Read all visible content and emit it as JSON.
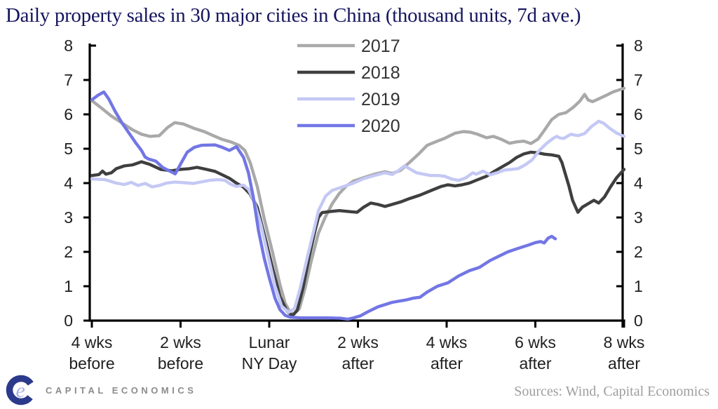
{
  "title": "Daily property sales in 30 major cities in China (thousand units, 7d ave.)",
  "footer": {
    "logo_text": "CAPITAL ECONOMICS",
    "sources": "Sources: Wind, Capital Economics"
  },
  "colors": {
    "title_text": "#15155f",
    "axis": "#000000",
    "tick_label": "#1f1f1f",
    "legend_label": "#333333",
    "logo_c": "#2c3a8c",
    "logo_e": "#a9b0e4",
    "logo_text": "#8c8c8c",
    "sources_text": "#9e9e9e"
  },
  "chart_data": {
    "type": "line",
    "title": "Daily property sales in 30 major cities in China (thousand units, 7d ave.)",
    "grid": false,
    "legend_position": "top-center",
    "x_axis": {
      "unit": "weeks relative to Lunar New Year Day",
      "range": [
        -4,
        8
      ],
      "ticks": [
        -4,
        -2,
        0,
        2,
        4,
        6,
        8
      ],
      "tick_labels": [
        [
          "4 wks",
          "before"
        ],
        [
          "2 wks",
          "before"
        ],
        [
          "Lunar",
          "NY Day"
        ],
        [
          "2 wks",
          "after"
        ],
        [
          "4 wks",
          "after"
        ],
        [
          "6 wks",
          "after"
        ],
        [
          "8 wks",
          "after"
        ]
      ]
    },
    "y_axis": {
      "range": [
        0,
        8
      ],
      "ticks": [
        0,
        1,
        2,
        3,
        4,
        5,
        6,
        7,
        8
      ],
      "sides": "both"
    },
    "series": [
      {
        "name": "2017",
        "color": "#a9a9a9",
        "points": [
          [
            -4,
            6.4
          ],
          [
            -3.8,
            6.2
          ],
          [
            -3.56,
            5.95
          ],
          [
            -3.32,
            5.75
          ],
          [
            -3.08,
            5.55
          ],
          [
            -2.88,
            5.42
          ],
          [
            -2.69,
            5.36
          ],
          [
            -2.48,
            5.38
          ],
          [
            -2.29,
            5.62
          ],
          [
            -2.13,
            5.76
          ],
          [
            -1.94,
            5.72
          ],
          [
            -1.71,
            5.6
          ],
          [
            -1.47,
            5.5
          ],
          [
            -1.26,
            5.38
          ],
          [
            -1.06,
            5.27
          ],
          [
            -0.87,
            5.2
          ],
          [
            -0.68,
            5.1
          ],
          [
            -0.55,
            4.95
          ],
          [
            -0.43,
            4.6
          ],
          [
            -0.27,
            3.9
          ],
          [
            -0.11,
            2.95
          ],
          [
            0.08,
            1.95
          ],
          [
            0.24,
            1.05
          ],
          [
            0.36,
            0.5
          ],
          [
            0.47,
            0.25
          ],
          [
            0.55,
            0.18
          ],
          [
            0.68,
            0.35
          ],
          [
            0.81,
            0.95
          ],
          [
            0.95,
            1.75
          ],
          [
            1.11,
            2.55
          ],
          [
            1.26,
            3.0
          ],
          [
            1.42,
            3.4
          ],
          [
            1.58,
            3.7
          ],
          [
            1.74,
            3.92
          ],
          [
            1.9,
            4.06
          ],
          [
            2.13,
            4.16
          ],
          [
            2.37,
            4.26
          ],
          [
            2.61,
            4.33
          ],
          [
            2.77,
            4.28
          ],
          [
            2.96,
            4.37
          ],
          [
            3.16,
            4.6
          ],
          [
            3.37,
            4.85
          ],
          [
            3.56,
            5.1
          ],
          [
            3.75,
            5.2
          ],
          [
            3.95,
            5.3
          ],
          [
            4.19,
            5.45
          ],
          [
            4.38,
            5.5
          ],
          [
            4.54,
            5.48
          ],
          [
            4.7,
            5.42
          ],
          [
            4.9,
            5.32
          ],
          [
            5.06,
            5.36
          ],
          [
            5.22,
            5.28
          ],
          [
            5.42,
            5.16
          ],
          [
            5.58,
            5.2
          ],
          [
            5.74,
            5.22
          ],
          [
            5.9,
            5.15
          ],
          [
            6.06,
            5.28
          ],
          [
            6.21,
            5.55
          ],
          [
            6.37,
            5.85
          ],
          [
            6.53,
            6.0
          ],
          [
            6.69,
            6.05
          ],
          [
            6.85,
            6.2
          ],
          [
            7.0,
            6.38
          ],
          [
            7.11,
            6.58
          ],
          [
            7.19,
            6.42
          ],
          [
            7.29,
            6.37
          ],
          [
            7.43,
            6.45
          ],
          [
            7.59,
            6.55
          ],
          [
            7.75,
            6.65
          ],
          [
            8,
            6.76
          ]
        ]
      },
      {
        "name": "2018",
        "color": "#3f3f3f",
        "points": [
          [
            -4,
            4.22
          ],
          [
            -3.84,
            4.25
          ],
          [
            -3.76,
            4.35
          ],
          [
            -3.68,
            4.26
          ],
          [
            -3.56,
            4.3
          ],
          [
            -3.45,
            4.42
          ],
          [
            -3.27,
            4.5
          ],
          [
            -3.08,
            4.53
          ],
          [
            -2.88,
            4.62
          ],
          [
            -2.7,
            4.55
          ],
          [
            -2.45,
            4.4
          ],
          [
            -2.2,
            4.36
          ],
          [
            -2.0,
            4.4
          ],
          [
            -1.8,
            4.42
          ],
          [
            -1.63,
            4.46
          ],
          [
            -1.42,
            4.4
          ],
          [
            -1.22,
            4.34
          ],
          [
            -1.06,
            4.24
          ],
          [
            -0.9,
            4.14
          ],
          [
            -0.74,
            4.0
          ],
          [
            -0.58,
            3.88
          ],
          [
            -0.43,
            3.68
          ],
          [
            -0.27,
            3.3
          ],
          [
            -0.11,
            2.5
          ],
          [
            0.08,
            1.5
          ],
          [
            0.24,
            0.7
          ],
          [
            0.4,
            0.28
          ],
          [
            0.52,
            0.14
          ],
          [
            0.63,
            0.3
          ],
          [
            0.76,
            0.95
          ],
          [
            0.9,
            1.86
          ],
          [
            1.03,
            2.6
          ],
          [
            1.11,
            3.0
          ],
          [
            1.19,
            3.14
          ],
          [
            1.35,
            3.17
          ],
          [
            1.58,
            3.2
          ],
          [
            1.82,
            3.17
          ],
          [
            1.98,
            3.15
          ],
          [
            2.13,
            3.3
          ],
          [
            2.29,
            3.42
          ],
          [
            2.45,
            3.38
          ],
          [
            2.61,
            3.32
          ],
          [
            2.77,
            3.38
          ],
          [
            2.96,
            3.45
          ],
          [
            3.16,
            3.55
          ],
          [
            3.4,
            3.65
          ],
          [
            3.64,
            3.78
          ],
          [
            3.87,
            3.9
          ],
          [
            4.03,
            3.95
          ],
          [
            4.19,
            3.92
          ],
          [
            4.35,
            3.95
          ],
          [
            4.51,
            4.0
          ],
          [
            4.7,
            4.1
          ],
          [
            4.9,
            4.2
          ],
          [
            5.06,
            4.33
          ],
          [
            5.22,
            4.45
          ],
          [
            5.42,
            4.6
          ],
          [
            5.58,
            4.75
          ],
          [
            5.74,
            4.85
          ],
          [
            5.9,
            4.9
          ],
          [
            6.06,
            4.88
          ],
          [
            6.21,
            4.84
          ],
          [
            6.37,
            4.82
          ],
          [
            6.53,
            4.78
          ],
          [
            6.6,
            4.6
          ],
          [
            6.68,
            4.25
          ],
          [
            6.76,
            3.9
          ],
          [
            6.84,
            3.5
          ],
          [
            6.96,
            3.15
          ],
          [
            7.06,
            3.3
          ],
          [
            7.19,
            3.4
          ],
          [
            7.32,
            3.5
          ],
          [
            7.43,
            3.42
          ],
          [
            7.56,
            3.6
          ],
          [
            7.7,
            3.9
          ],
          [
            7.83,
            4.15
          ],
          [
            8,
            4.4
          ]
        ]
      },
      {
        "name": "2019",
        "color": "#c4c8f4",
        "points": [
          [
            -4,
            4.12
          ],
          [
            -3.7,
            4.1
          ],
          [
            -3.45,
            4.0
          ],
          [
            -3.27,
            3.96
          ],
          [
            -3.11,
            4.02
          ],
          [
            -2.96,
            3.93
          ],
          [
            -2.8,
            3.99
          ],
          [
            -2.64,
            3.89
          ],
          [
            -2.48,
            3.93
          ],
          [
            -2.32,
            4.0
          ],
          [
            -2.13,
            4.03
          ],
          [
            -1.9,
            4.01
          ],
          [
            -1.71,
            3.99
          ],
          [
            -1.55,
            4.03
          ],
          [
            -1.35,
            4.08
          ],
          [
            -1.15,
            4.1
          ],
          [
            -1.0,
            4.08
          ],
          [
            -0.87,
            3.97
          ],
          [
            -0.74,
            3.9
          ],
          [
            -0.58,
            3.94
          ],
          [
            -0.47,
            3.82
          ],
          [
            -0.35,
            3.5
          ],
          [
            -0.19,
            2.8
          ],
          [
            -0.03,
            1.9
          ],
          [
            0.13,
            1.0
          ],
          [
            0.28,
            0.42
          ],
          [
            0.44,
            0.24
          ],
          [
            0.57,
            0.35
          ],
          [
            0.7,
            0.95
          ],
          [
            0.85,
            1.8
          ],
          [
            1.0,
            2.6
          ],
          [
            1.11,
            3.2
          ],
          [
            1.27,
            3.62
          ],
          [
            1.42,
            3.79
          ],
          [
            1.58,
            3.86
          ],
          [
            1.74,
            3.93
          ],
          [
            1.9,
            4.0
          ],
          [
            2.13,
            4.13
          ],
          [
            2.37,
            4.22
          ],
          [
            2.61,
            4.3
          ],
          [
            2.77,
            4.25
          ],
          [
            2.9,
            4.35
          ],
          [
            3.05,
            4.5
          ],
          [
            3.16,
            4.42
          ],
          [
            3.32,
            4.3
          ],
          [
            3.48,
            4.26
          ],
          [
            3.64,
            4.22
          ],
          [
            3.8,
            4.22
          ],
          [
            3.95,
            4.2
          ],
          [
            4.11,
            4.12
          ],
          [
            4.27,
            4.08
          ],
          [
            4.43,
            4.15
          ],
          [
            4.59,
            4.3
          ],
          [
            4.67,
            4.26
          ],
          [
            4.82,
            4.35
          ],
          [
            4.98,
            4.24
          ],
          [
            5.14,
            4.3
          ],
          [
            5.3,
            4.38
          ],
          [
            5.46,
            4.4
          ],
          [
            5.61,
            4.42
          ],
          [
            5.77,
            4.53
          ],
          [
            5.93,
            4.68
          ],
          [
            6.09,
            4.95
          ],
          [
            6.25,
            5.15
          ],
          [
            6.4,
            5.3
          ],
          [
            6.48,
            5.36
          ],
          [
            6.56,
            5.31
          ],
          [
            6.64,
            5.3
          ],
          [
            6.8,
            5.42
          ],
          [
            6.96,
            5.38
          ],
          [
            7.11,
            5.44
          ],
          [
            7.27,
            5.65
          ],
          [
            7.43,
            5.8
          ],
          [
            7.54,
            5.74
          ],
          [
            7.67,
            5.6
          ],
          [
            7.83,
            5.46
          ],
          [
            8,
            5.36
          ]
        ]
      },
      {
        "name": "2020",
        "color": "#7276e4",
        "points": [
          [
            -4,
            6.42
          ],
          [
            -3.87,
            6.55
          ],
          [
            -3.73,
            6.65
          ],
          [
            -3.62,
            6.45
          ],
          [
            -3.48,
            6.1
          ],
          [
            -3.32,
            5.75
          ],
          [
            -3.16,
            5.45
          ],
          [
            -3.0,
            5.15
          ],
          [
            -2.88,
            4.95
          ],
          [
            -2.8,
            4.76
          ],
          [
            -2.72,
            4.7
          ],
          [
            -2.56,
            4.64
          ],
          [
            -2.4,
            4.45
          ],
          [
            -2.12,
            4.27
          ],
          [
            -1.98,
            4.6
          ],
          [
            -1.85,
            4.9
          ],
          [
            -1.69,
            5.04
          ],
          [
            -1.53,
            5.1
          ],
          [
            -1.22,
            5.11
          ],
          [
            -1.06,
            5.04
          ],
          [
            -0.9,
            4.95
          ],
          [
            -0.74,
            5.06
          ],
          [
            -0.58,
            4.75
          ],
          [
            -0.47,
            4.3
          ],
          [
            -0.36,
            3.6
          ],
          [
            -0.24,
            2.6
          ],
          [
            -0.11,
            1.8
          ],
          [
            0,
            1.25
          ],
          [
            0.13,
            0.65
          ],
          [
            0.24,
            0.32
          ],
          [
            0.36,
            0.15
          ],
          [
            0.47,
            0.1
          ],
          [
            0.7,
            0.08
          ],
          [
            1.0,
            0.08
          ],
          [
            1.3,
            0.08
          ],
          [
            1.6,
            0.07
          ],
          [
            1.77,
            0.04
          ],
          [
            1.9,
            0.08
          ],
          [
            2.06,
            0.14
          ],
          [
            2.21,
            0.25
          ],
          [
            2.45,
            0.4
          ],
          [
            2.77,
            0.53
          ],
          [
            3.08,
            0.6
          ],
          [
            3.24,
            0.65
          ],
          [
            3.4,
            0.68
          ],
          [
            3.56,
            0.83
          ],
          [
            3.79,
            1.0
          ],
          [
            4.03,
            1.1
          ],
          [
            4.27,
            1.3
          ],
          [
            4.51,
            1.45
          ],
          [
            4.74,
            1.55
          ],
          [
            4.98,
            1.75
          ],
          [
            5.14,
            1.85
          ],
          [
            5.38,
            2.0
          ],
          [
            5.61,
            2.1
          ],
          [
            5.85,
            2.2
          ],
          [
            6.0,
            2.27
          ],
          [
            6.12,
            2.3
          ],
          [
            6.2,
            2.26
          ],
          [
            6.29,
            2.4
          ],
          [
            6.37,
            2.45
          ],
          [
            6.45,
            2.38
          ]
        ]
      }
    ]
  }
}
